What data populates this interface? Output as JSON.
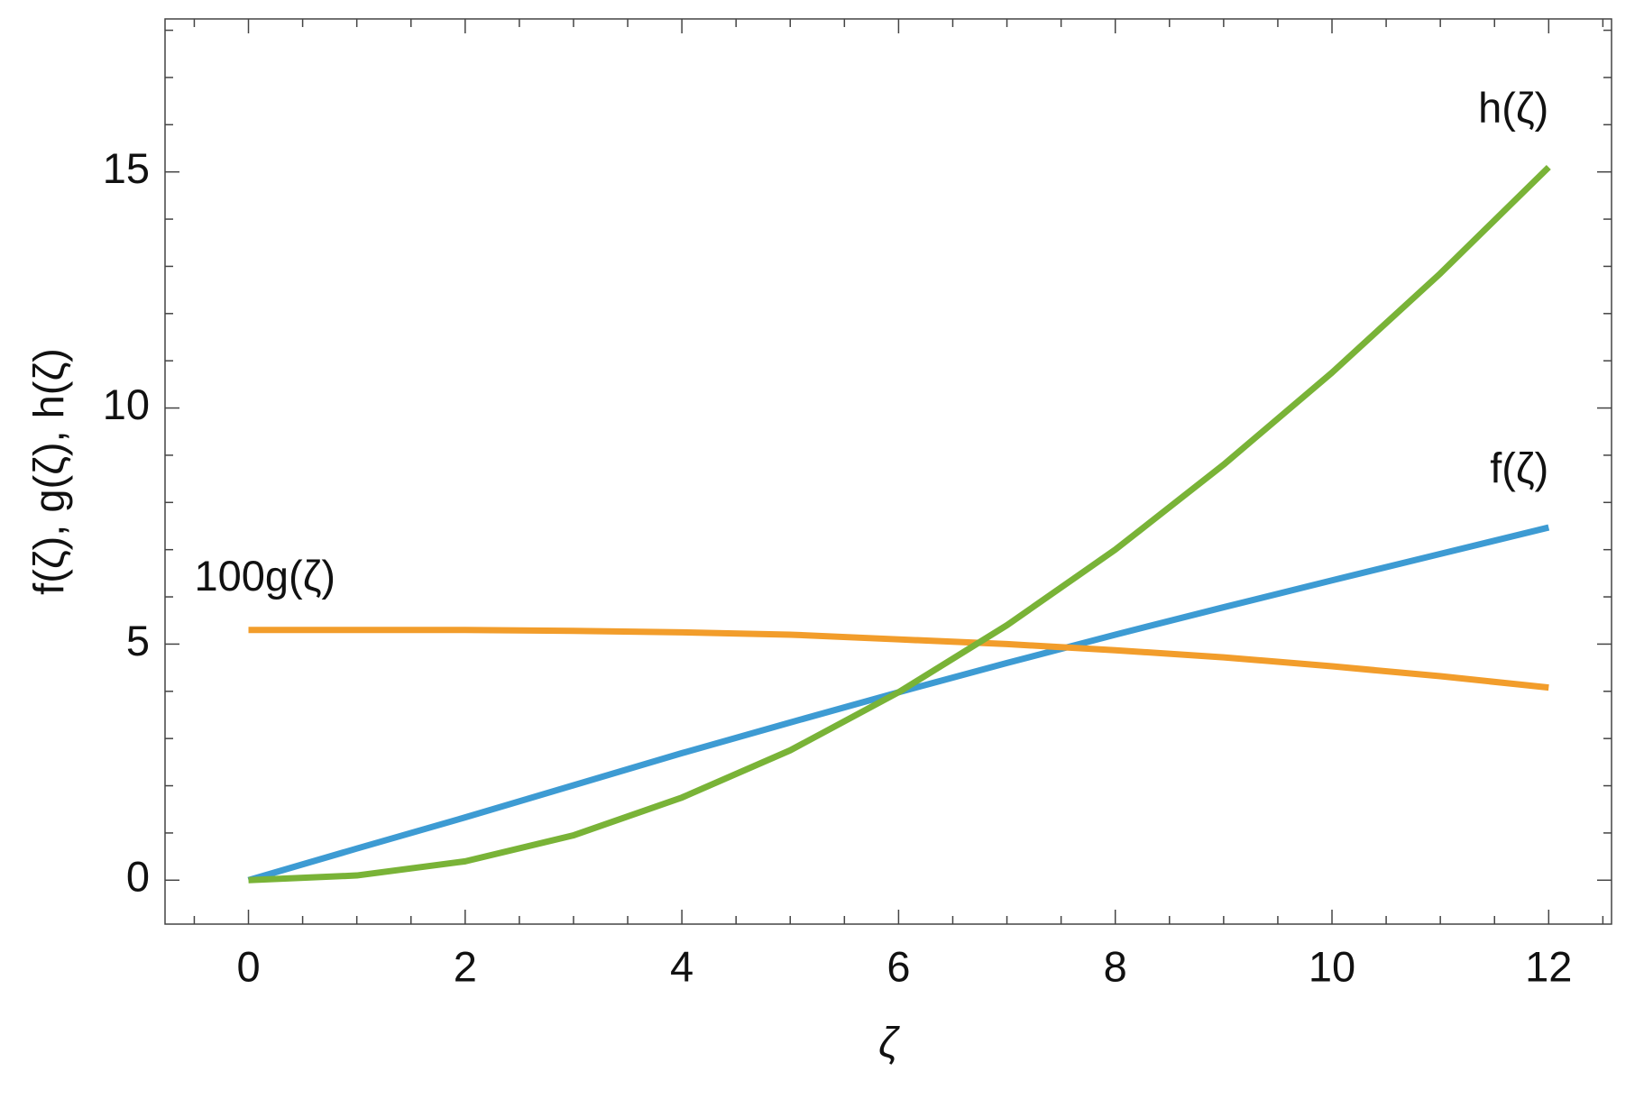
{
  "chart_data": {
    "type": "line",
    "xlabel": "ζ",
    "ylabel": "f(ζ), g(ζ), h(ζ)",
    "x": [
      0,
      1,
      2,
      3,
      4,
      5,
      6,
      7,
      8,
      9,
      10,
      11,
      12
    ],
    "series": [
      {
        "name": "f(ζ)",
        "color": "#3d9bd3",
        "values": [
          0,
          0.67,
          1.33,
          2.01,
          2.69,
          3.34,
          3.98,
          4.6,
          5.2,
          5.78,
          6.35,
          6.91,
          7.47
        ]
      },
      {
        "name": "100g(ζ)",
        "color": "#f29d2b",
        "values": [
          5.3,
          5.3,
          5.3,
          5.28,
          5.25,
          5.2,
          5.1,
          5.0,
          4.87,
          4.72,
          4.53,
          4.32,
          4.08
        ]
      },
      {
        "name": "h(ζ)",
        "color": "#79b337",
        "values": [
          0,
          0.1,
          0.4,
          0.95,
          1.75,
          2.75,
          3.98,
          5.4,
          7.0,
          8.8,
          10.75,
          12.85,
          15.1
        ]
      }
    ],
    "xlim": [
      -0.77,
      12.58
    ],
    "ylim": [
      -0.93,
      18.24
    ],
    "xticks": [
      0,
      2,
      4,
      6,
      8,
      10,
      12
    ],
    "yticks": [
      0,
      5,
      10,
      15
    ],
    "xminorticks": [
      -0.5,
      0.5,
      1,
      1.5,
      2.5,
      3,
      3.5,
      4.5,
      5,
      5.5,
      6.5,
      7,
      7.5,
      8.5,
      9,
      9.5,
      10.5,
      11,
      11.5,
      12.5
    ],
    "yminorticks": [
      1,
      2,
      3,
      4,
      6,
      7,
      8,
      9,
      11,
      12,
      13,
      14,
      16,
      17,
      18
    ]
  }
}
